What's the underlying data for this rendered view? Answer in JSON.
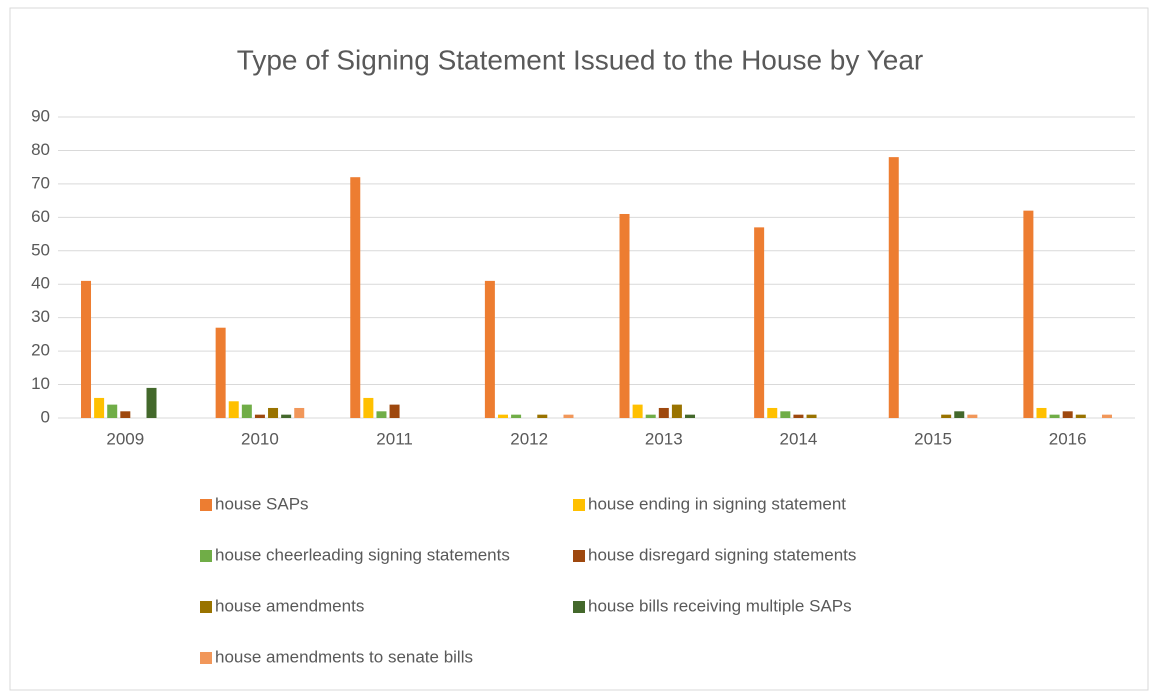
{
  "chart_data": {
    "type": "bar",
    "title": "Type of Signing Statement Issued to the House by Year",
    "categories": [
      "2009",
      "2010",
      "2011",
      "2012",
      "2013",
      "2014",
      "2015",
      "2016"
    ],
    "series": [
      {
        "name": "house SAPs",
        "color": "#ED7D31",
        "values": [
          41,
          27,
          72,
          41,
          61,
          57,
          78,
          62
        ]
      },
      {
        "name": "house ending in signing statement",
        "color": "#FFC000",
        "values": [
          6,
          5,
          6,
          1,
          4,
          3,
          0,
          3
        ]
      },
      {
        "name": "house cheerleading signing statements",
        "color": "#70AD47",
        "values": [
          4,
          4,
          2,
          1,
          1,
          2,
          0,
          1
        ]
      },
      {
        "name": "house disregard signing statements",
        "color": "#9E480E",
        "values": [
          2,
          1,
          4,
          0,
          3,
          1,
          0,
          2
        ]
      },
      {
        "name": "house amendments",
        "color": "#997300",
        "values": [
          0,
          3,
          0,
          1,
          4,
          1,
          1,
          1
        ]
      },
      {
        "name": "house bills receiving multiple SAPs",
        "color": "#43682B",
        "values": [
          9,
          1,
          0,
          0,
          1,
          0,
          2,
          0
        ]
      },
      {
        "name": "house amendments to senate bills",
        "color": "#F1975A",
        "values": [
          0,
          3,
          0,
          1,
          0,
          0,
          1,
          1
        ]
      }
    ],
    "ylim": [
      0,
      90
    ],
    "yticks": [
      0,
      10,
      20,
      30,
      40,
      50,
      60,
      70,
      80,
      90
    ],
    "grid": true,
    "legend": "bottom"
  }
}
